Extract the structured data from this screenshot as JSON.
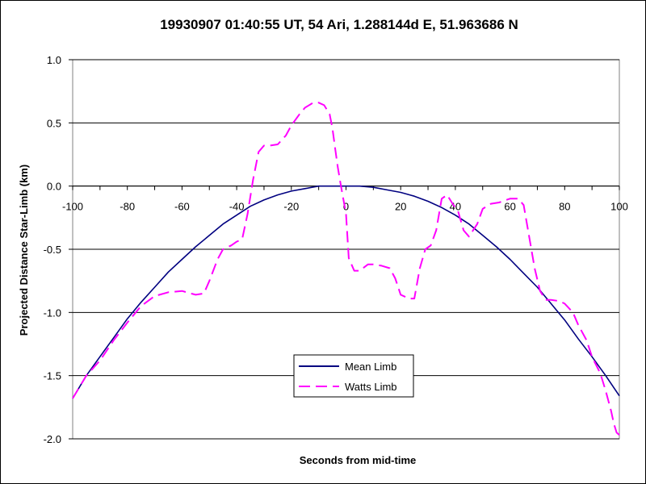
{
  "chart_data": {
    "type": "line",
    "title": "19930907 01:40:55 UT, 54 Ari, 1.288144d E, 51.963686 N",
    "xlabel": "Seconds from mid-time",
    "ylabel": "Projected Distance Star-Limb (km)",
    "xlim": [
      -100,
      100
    ],
    "ylim": [
      -2.0,
      1.0
    ],
    "x_ticks": [
      -100,
      -80,
      -60,
      -40,
      -20,
      0,
      20,
      40,
      60,
      80,
      100
    ],
    "y_ticks": [
      1.0,
      0.5,
      0.0,
      -0.5,
      -1.0,
      -1.5,
      -2.0
    ],
    "x_tick_labels": [
      "-100",
      "-80",
      "-60",
      "-40",
      "-20",
      "0",
      "20",
      "40",
      "60",
      "80",
      "100"
    ],
    "y_tick_labels": [
      "1.0",
      "0.5",
      "0.0",
      "-0.5",
      "-1.0",
      "-1.5",
      "-2.0"
    ],
    "grid": "horizontal",
    "legend_position": "bottom-center",
    "series": [
      {
        "name": "Mean Limb",
        "color": "#000080",
        "dash": "solid",
        "x": [
          -100,
          -95,
          -90,
          -85,
          -80,
          -75,
          -70,
          -65,
          -60,
          -55,
          -50,
          -45,
          -40,
          -35,
          -30,
          -25,
          -20,
          -15,
          -10,
          -5,
          0,
          5,
          10,
          15,
          20,
          25,
          30,
          35,
          40,
          45,
          50,
          55,
          60,
          65,
          70,
          75,
          80,
          85,
          90,
          95,
          100
        ],
        "y": [
          -1.68,
          -1.5,
          -1.35,
          -1.2,
          -1.05,
          -0.92,
          -0.8,
          -0.68,
          -0.58,
          -0.48,
          -0.39,
          -0.3,
          -0.23,
          -0.16,
          -0.11,
          -0.07,
          -0.04,
          -0.02,
          0.0,
          0.0,
          0.0,
          0.0,
          -0.01,
          -0.03,
          -0.05,
          -0.08,
          -0.12,
          -0.17,
          -0.23,
          -0.3,
          -0.39,
          -0.48,
          -0.58,
          -0.69,
          -0.8,
          -0.93,
          -1.06,
          -1.21,
          -1.35,
          -1.5,
          -1.66
        ]
      },
      {
        "name": "Watts Limb",
        "color": "#ff00ff",
        "dash": "dashed",
        "x": [
          -100,
          -95,
          -90,
          -85,
          -80,
          -75,
          -70,
          -65,
          -60,
          -55,
          -52,
          -50,
          -47,
          -45,
          -42,
          -40,
          -38,
          -36,
          -34,
          -32,
          -30,
          -28,
          -25,
          -22,
          -20,
          -17,
          -15,
          -12,
          -10,
          -8,
          -6,
          -5,
          -4,
          -3,
          -2,
          0,
          1,
          3,
          5,
          8,
          10,
          13,
          16,
          18,
          20,
          23,
          25,
          27,
          29,
          31,
          33,
          35,
          37,
          39,
          41,
          43,
          45,
          48,
          50,
          53,
          56,
          60,
          63,
          65,
          67,
          69,
          71,
          73,
          75,
          78,
          80,
          83,
          85,
          88,
          90,
          93,
          95,
          97,
          98,
          99,
          100
        ],
        "y": [
          -1.68,
          -1.5,
          -1.38,
          -1.22,
          -1.08,
          -0.95,
          -0.87,
          -0.84,
          -0.83,
          -0.86,
          -0.85,
          -0.75,
          -0.58,
          -0.5,
          -0.47,
          -0.44,
          -0.42,
          -0.22,
          0.05,
          0.27,
          0.32,
          0.32,
          0.33,
          0.4,
          0.48,
          0.57,
          0.62,
          0.66,
          0.66,
          0.64,
          0.57,
          0.46,
          0.3,
          0.15,
          0.02,
          -0.22,
          -0.57,
          -0.67,
          -0.67,
          -0.62,
          -0.62,
          -0.63,
          -0.65,
          -0.73,
          -0.86,
          -0.89,
          -0.89,
          -0.65,
          -0.5,
          -0.47,
          -0.35,
          -0.1,
          -0.07,
          -0.14,
          -0.2,
          -0.35,
          -0.4,
          -0.3,
          -0.18,
          -0.14,
          -0.13,
          -0.1,
          -0.1,
          -0.15,
          -0.4,
          -0.65,
          -0.83,
          -0.9,
          -0.9,
          -0.91,
          -0.93,
          -1.0,
          -1.1,
          -1.22,
          -1.35,
          -1.48,
          -1.62,
          -1.78,
          -1.88,
          -1.95,
          -1.97
        ]
      }
    ]
  }
}
